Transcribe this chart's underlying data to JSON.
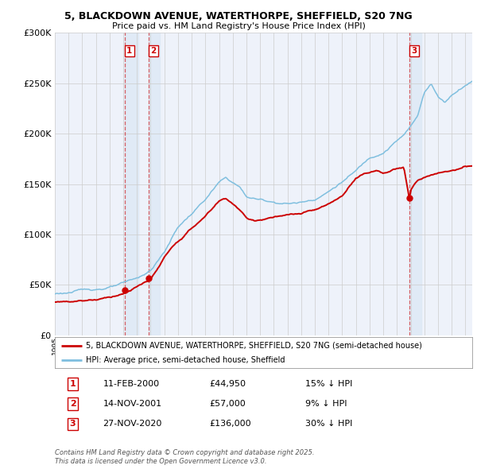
{
  "title1": "5, BLACKDOWN AVENUE, WATERTHORPE, SHEFFIELD, S20 7NG",
  "title2": "Price paid vs. HM Land Registry's House Price Index (HPI)",
  "ylim": [
    0,
    300000
  ],
  "xlim_start": 1995.0,
  "xlim_end": 2025.5,
  "yticks": [
    0,
    50000,
    100000,
    150000,
    200000,
    250000,
    300000
  ],
  "ytick_labels": [
    "£0",
    "£50K",
    "£100K",
    "£150K",
    "£200K",
    "£250K",
    "£300K"
  ],
  "property_color": "#cc0000",
  "hpi_color": "#7fbfdf",
  "background_color": "#ffffff",
  "plot_bg_color": "#eef2fa",
  "grid_color": "#cccccc",
  "sale_dates_decimal": [
    2000.11,
    2001.87,
    2020.91
  ],
  "sale_prices": [
    44950,
    57000,
    136000
  ],
  "sale_labels": [
    "1",
    "2",
    "3"
  ],
  "shade_color": "#dde8f5",
  "footer_text": "Contains HM Land Registry data © Crown copyright and database right 2025.\nThis data is licensed under the Open Government Licence v3.0.",
  "legend_property": "5, BLACKDOWN AVENUE, WATERTHORPE, SHEFFIELD, S20 7NG (semi-detached house)",
  "legend_hpi": "HPI: Average price, semi-detached house, Sheffield",
  "table_data": [
    [
      "1",
      "11-FEB-2000",
      "£44,950",
      "15% ↓ HPI"
    ],
    [
      "2",
      "14-NOV-2001",
      "£57,000",
      "9% ↓ HPI"
    ],
    [
      "3",
      "27-NOV-2020",
      "£136,000",
      "30% ↓ HPI"
    ]
  ]
}
